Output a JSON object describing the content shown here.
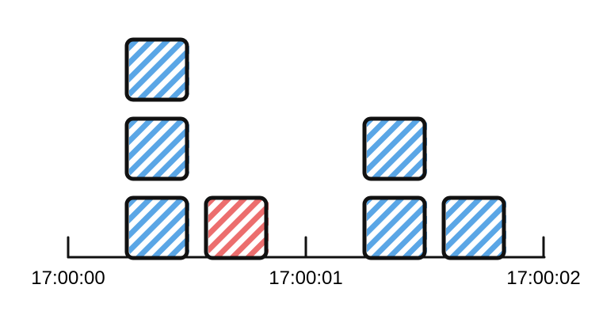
{
  "timeline": {
    "ticks": [
      "17:00:00",
      "17:00:01",
      "17:00:02"
    ],
    "stacks": [
      {
        "tick_index": 0,
        "slot": 0,
        "blocks": [
          "blue",
          "blue",
          "blue"
        ]
      },
      {
        "tick_index": 0,
        "slot": 1,
        "blocks": [
          "red"
        ]
      },
      {
        "tick_index": 1,
        "slot": 0,
        "blocks": [
          "blue",
          "blue"
        ]
      },
      {
        "tick_index": 1,
        "slot": 1,
        "blocks": [
          "blue"
        ]
      }
    ]
  },
  "colors": {
    "blue": "#5aa6e6",
    "red": "#ec6e6e",
    "outline": "#111111",
    "axis": "#111111"
  }
}
